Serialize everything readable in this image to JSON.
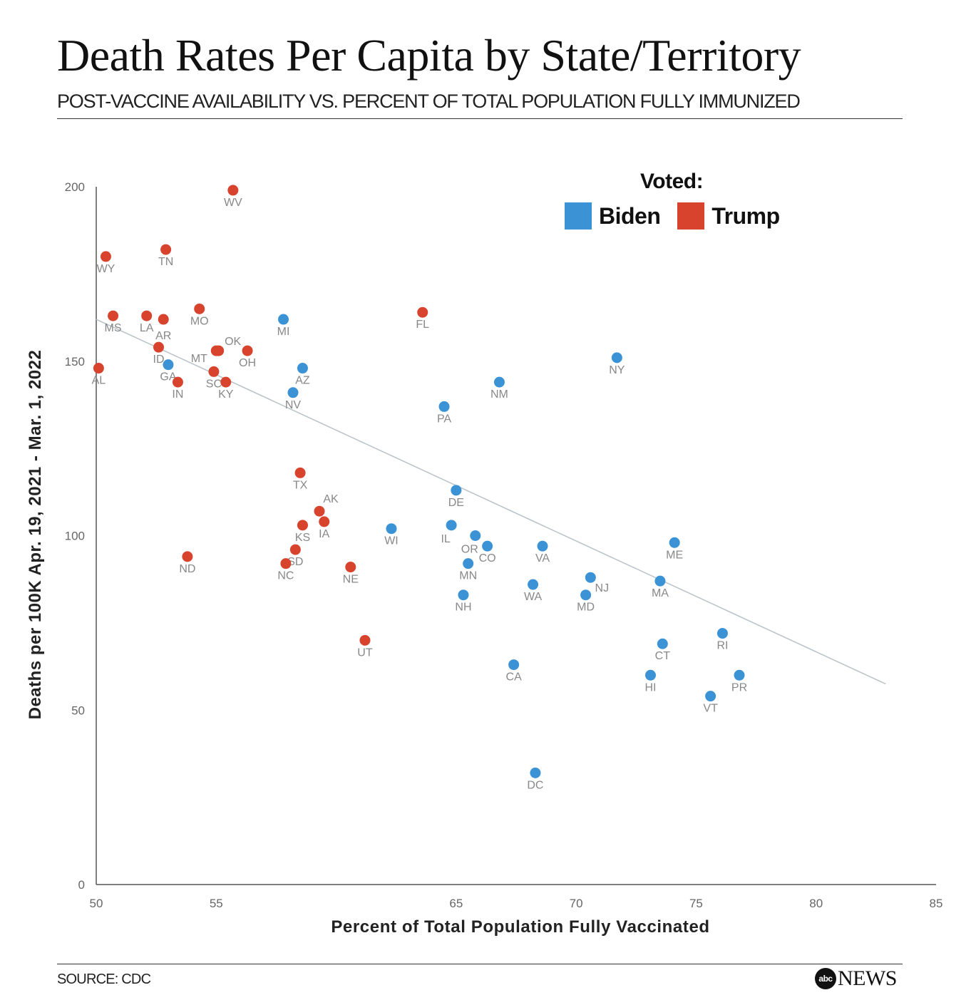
{
  "header": {
    "title": "Death Rates Per Capita by State/Territory",
    "subtitle": "POST-VACCINE AVAILABILITY VS. PERCENT OF TOTAL POPULATION FULLY IMMUNIZED"
  },
  "footer": {
    "source": "SOURCE: CDC",
    "brand_mark": "abc",
    "brand_name": "NEWS"
  },
  "colors": {
    "biden": "#3b93d6",
    "trump": "#d8432e",
    "trendline": "#b8c2c8",
    "axis": "#555555",
    "label": "#888888"
  },
  "chart_data": {
    "type": "scatter",
    "xlabel": "Percent of Total Population Fully Vaccinated",
    "ylabel": "Deaths per 100K Apr. 19, 2021 - Mar. 1, 2022",
    "xlim": [
      50,
      85
    ],
    "ylim": [
      0,
      200
    ],
    "x_ticks": [
      50,
      55,
      65,
      70,
      75,
      80,
      85
    ],
    "y_ticks": [
      0,
      50,
      100,
      150,
      200
    ],
    "grid": false,
    "legend": {
      "title": "Voted:",
      "placement": "top-right",
      "entries": [
        {
          "label": "Biden",
          "color": "#3b93d6"
        },
        {
          "label": "Trump",
          "color": "#d8432e"
        }
      ]
    },
    "trendline": {
      "x": [
        50,
        82.9
      ],
      "y": [
        162,
        57.5
      ]
    },
    "series": [
      {
        "name": "Biden",
        "color": "#3b93d6",
        "points": [
          {
            "label": "GA",
            "x": 53.0,
            "y": 149
          },
          {
            "label": "MI",
            "x": 57.8,
            "y": 162
          },
          {
            "label": "AZ",
            "x": 58.6,
            "y": 148
          },
          {
            "label": "NV",
            "x": 58.2,
            "y": 141
          },
          {
            "label": "PA",
            "x": 64.5,
            "y": 137
          },
          {
            "label": "NM",
            "x": 66.8,
            "y": 144
          },
          {
            "label": "NY",
            "x": 71.7,
            "y": 151
          },
          {
            "label": "DE",
            "x": 65.0,
            "y": 113
          },
          {
            "label": "WI",
            "x": 62.3,
            "y": 102
          },
          {
            "label": "IL",
            "x": 64.8,
            "y": 103
          },
          {
            "label": "OR",
            "x": 65.8,
            "y": 100
          },
          {
            "label": "CO",
            "x": 66.3,
            "y": 97
          },
          {
            "label": "MN",
            "x": 65.5,
            "y": 92
          },
          {
            "label": "NH",
            "x": 65.3,
            "y": 83
          },
          {
            "label": "VA",
            "x": 68.6,
            "y": 97
          },
          {
            "label": "WA",
            "x": 68.2,
            "y": 86
          },
          {
            "label": "NJ",
            "x": 70.6,
            "y": 88
          },
          {
            "label": "MD",
            "x": 70.4,
            "y": 83
          },
          {
            "label": "ME",
            "x": 74.1,
            "y": 98
          },
          {
            "label": "MA",
            "x": 73.5,
            "y": 87
          },
          {
            "label": "CA",
            "x": 67.4,
            "y": 63
          },
          {
            "label": "CT",
            "x": 73.6,
            "y": 69
          },
          {
            "label": "HI",
            "x": 73.1,
            "y": 60
          },
          {
            "label": "RI",
            "x": 76.1,
            "y": 72
          },
          {
            "label": "PR",
            "x": 76.8,
            "y": 60
          },
          {
            "label": "VT",
            "x": 75.6,
            "y": 54
          },
          {
            "label": "DC",
            "x": 68.3,
            "y": 32
          }
        ]
      },
      {
        "name": "Trump",
        "color": "#d8432e",
        "points": [
          {
            "label": "WV",
            "x": 55.7,
            "y": 199
          },
          {
            "label": "WY",
            "x": 50.4,
            "y": 180
          },
          {
            "label": "TN",
            "x": 52.9,
            "y": 182
          },
          {
            "label": "MS",
            "x": 50.7,
            "y": 163
          },
          {
            "label": "LA",
            "x": 52.1,
            "y": 163
          },
          {
            "label": "AR",
            "x": 52.8,
            "y": 162
          },
          {
            "label": "MO",
            "x": 54.3,
            "y": 165
          },
          {
            "label": "FL",
            "x": 63.6,
            "y": 164
          },
          {
            "label": "ID",
            "x": 52.6,
            "y": 154
          },
          {
            "label": "OK",
            "x": 55.1,
            "y": 153
          },
          {
            "label": "MT",
            "x": 55.0,
            "y": 153
          },
          {
            "label": "OH",
            "x": 56.3,
            "y": 153
          },
          {
            "label": "AL",
            "x": 50.1,
            "y": 148
          },
          {
            "label": "SC",
            "x": 54.9,
            "y": 147
          },
          {
            "label": "IN",
            "x": 53.4,
            "y": 144
          },
          {
            "label": "KY",
            "x": 55.4,
            "y": 144
          },
          {
            "label": "TX",
            "x": 58.5,
            "y": 118
          },
          {
            "label": "AK",
            "x": 59.3,
            "y": 107
          },
          {
            "label": "KS",
            "x": 58.6,
            "y": 103
          },
          {
            "label": "IA",
            "x": 59.5,
            "y": 104
          },
          {
            "label": "SD",
            "x": 58.3,
            "y": 96
          },
          {
            "label": "NC",
            "x": 57.9,
            "y": 92
          },
          {
            "label": "ND",
            "x": 53.8,
            "y": 94
          },
          {
            "label": "NE",
            "x": 60.6,
            "y": 91
          },
          {
            "label": "UT",
            "x": 61.2,
            "y": 70
          }
        ]
      }
    ]
  }
}
